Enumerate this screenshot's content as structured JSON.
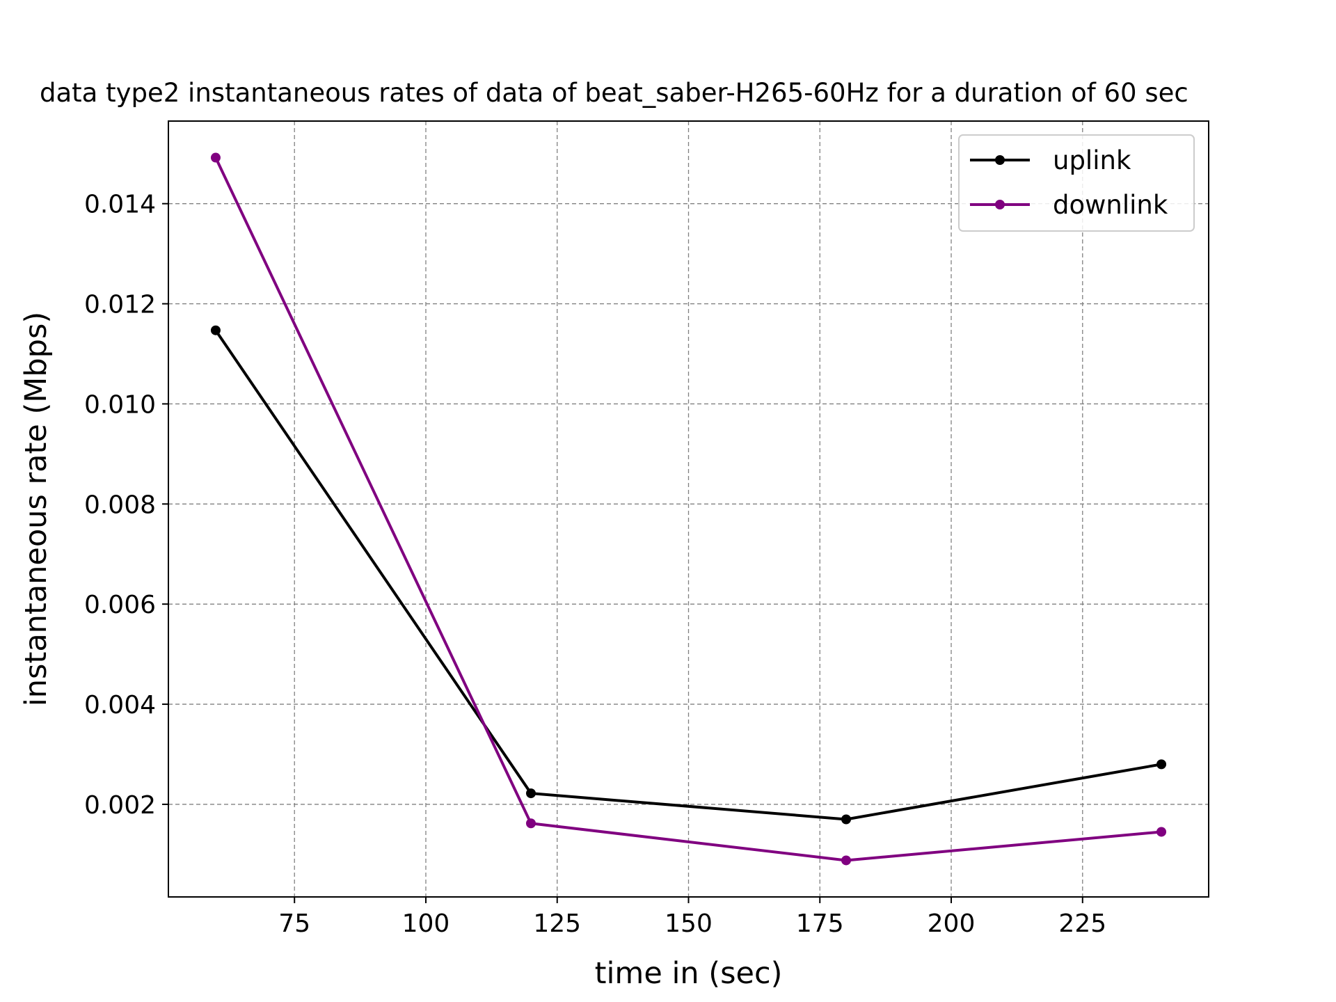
{
  "chart_data": {
    "type": "line",
    "title": "data type2 instantaneous rates of data of beat_saber-H265-60Hz for a duration of 60 sec",
    "xlabel": "time in (sec)",
    "ylabel": "instantaneous rate (Mbps)",
    "x": [
      60,
      120,
      180,
      240
    ],
    "xlim": [
      51,
      249
    ],
    "ylim": [
      0.00015,
      0.01565
    ],
    "x_ticks": [
      75,
      100,
      125,
      150,
      175,
      200,
      225
    ],
    "x_tick_labels": [
      "75",
      "100",
      "125",
      "150",
      "175",
      "200",
      "225"
    ],
    "y_ticks": [
      0.002,
      0.004,
      0.006,
      0.008,
      0.01,
      0.012,
      0.014
    ],
    "y_tick_labels": [
      "0.002",
      "0.004",
      "0.006",
      "0.008",
      "0.010",
      "0.012",
      "0.014"
    ],
    "grid": true,
    "legend_position": "top-right",
    "series": [
      {
        "name": "uplink",
        "color": "#000000",
        "marker": "dot",
        "values": [
          0.01147,
          0.00222,
          0.0017,
          0.0028
        ]
      },
      {
        "name": "downlink",
        "color": "#800080",
        "marker": "dot",
        "values": [
          0.01492,
          0.00162,
          0.00088,
          0.00145
        ]
      }
    ]
  }
}
